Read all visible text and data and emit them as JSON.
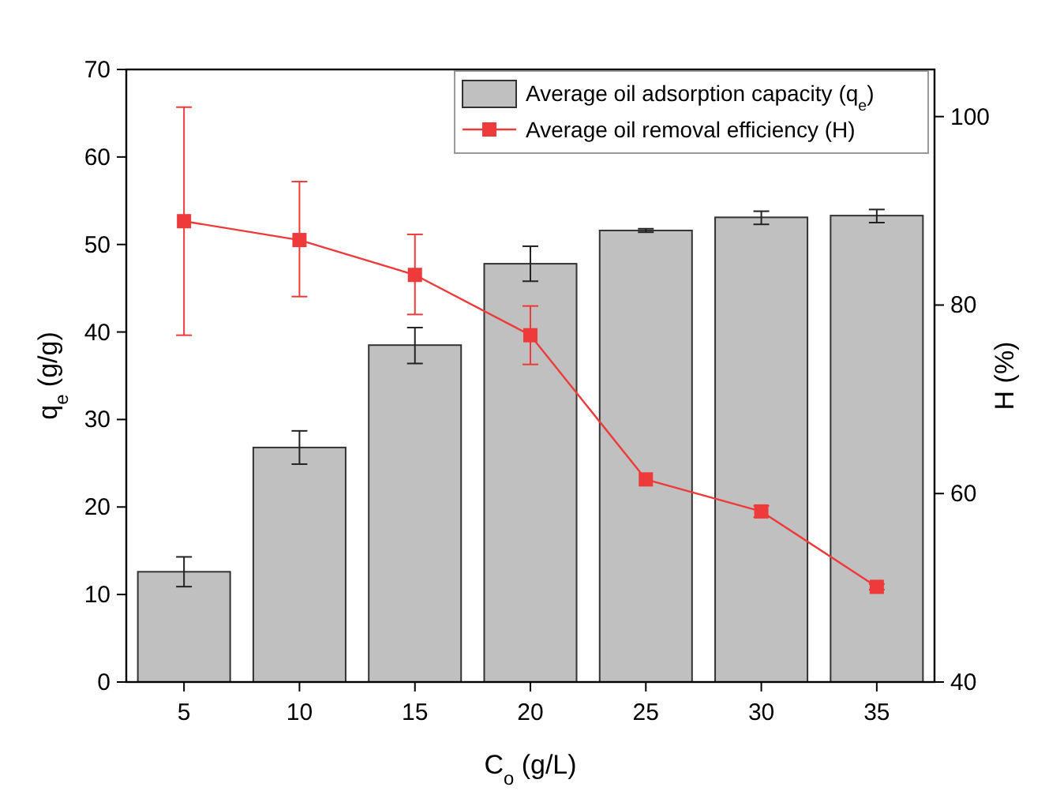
{
  "chart_data": {
    "type": "bar",
    "categories": [
      "5",
      "10",
      "15",
      "20",
      "25",
      "30",
      "35"
    ],
    "xlabel": "C$_{o}$ (g/L)",
    "ylabel": "q$_{e}$ (g/g)",
    "y2label": "H (%)",
    "ylim": [
      0,
      70
    ],
    "yticks": [
      0,
      10,
      20,
      30,
      40,
      50,
      60,
      70
    ],
    "y2lim": [
      40,
      105
    ],
    "y2ticks": [
      40,
      60,
      80,
      100
    ],
    "legend": "top right",
    "series": [
      {
        "name": "Average oil adsorption capacity (q$_{e}$)",
        "color": "#c0c0c0",
        "values": [
          12.6,
          26.8,
          38.5,
          47.8,
          51.6,
          53.1,
          53.3
        ],
        "errors": [
          [
            10.9,
            14.3
          ],
          [
            24.9,
            28.7
          ],
          [
            36.4,
            40.5
          ],
          [
            45.8,
            49.8
          ],
          [
            51.4,
            51.8
          ],
          [
            52.3,
            53.8
          ],
          [
            52.5,
            54.0
          ]
        ]
      },
      {
        "name": "Average oil removal efficiency (H)",
        "type": "line",
        "axis": "y2",
        "marker": "square",
        "color": "#ee3a3a",
        "values": [
          88.9,
          86.9,
          83.2,
          76.8,
          61.5,
          58.1,
          50.1
        ],
        "errors": [
          [
            76.8,
            101.0
          ],
          [
            80.9,
            93.1
          ],
          [
            79.0,
            87.5
          ],
          [
            73.7,
            79.9
          ],
          null,
          [
            57.5,
            58.7
          ],
          [
            49.8,
            50.4
          ]
        ]
      }
    ]
  }
}
